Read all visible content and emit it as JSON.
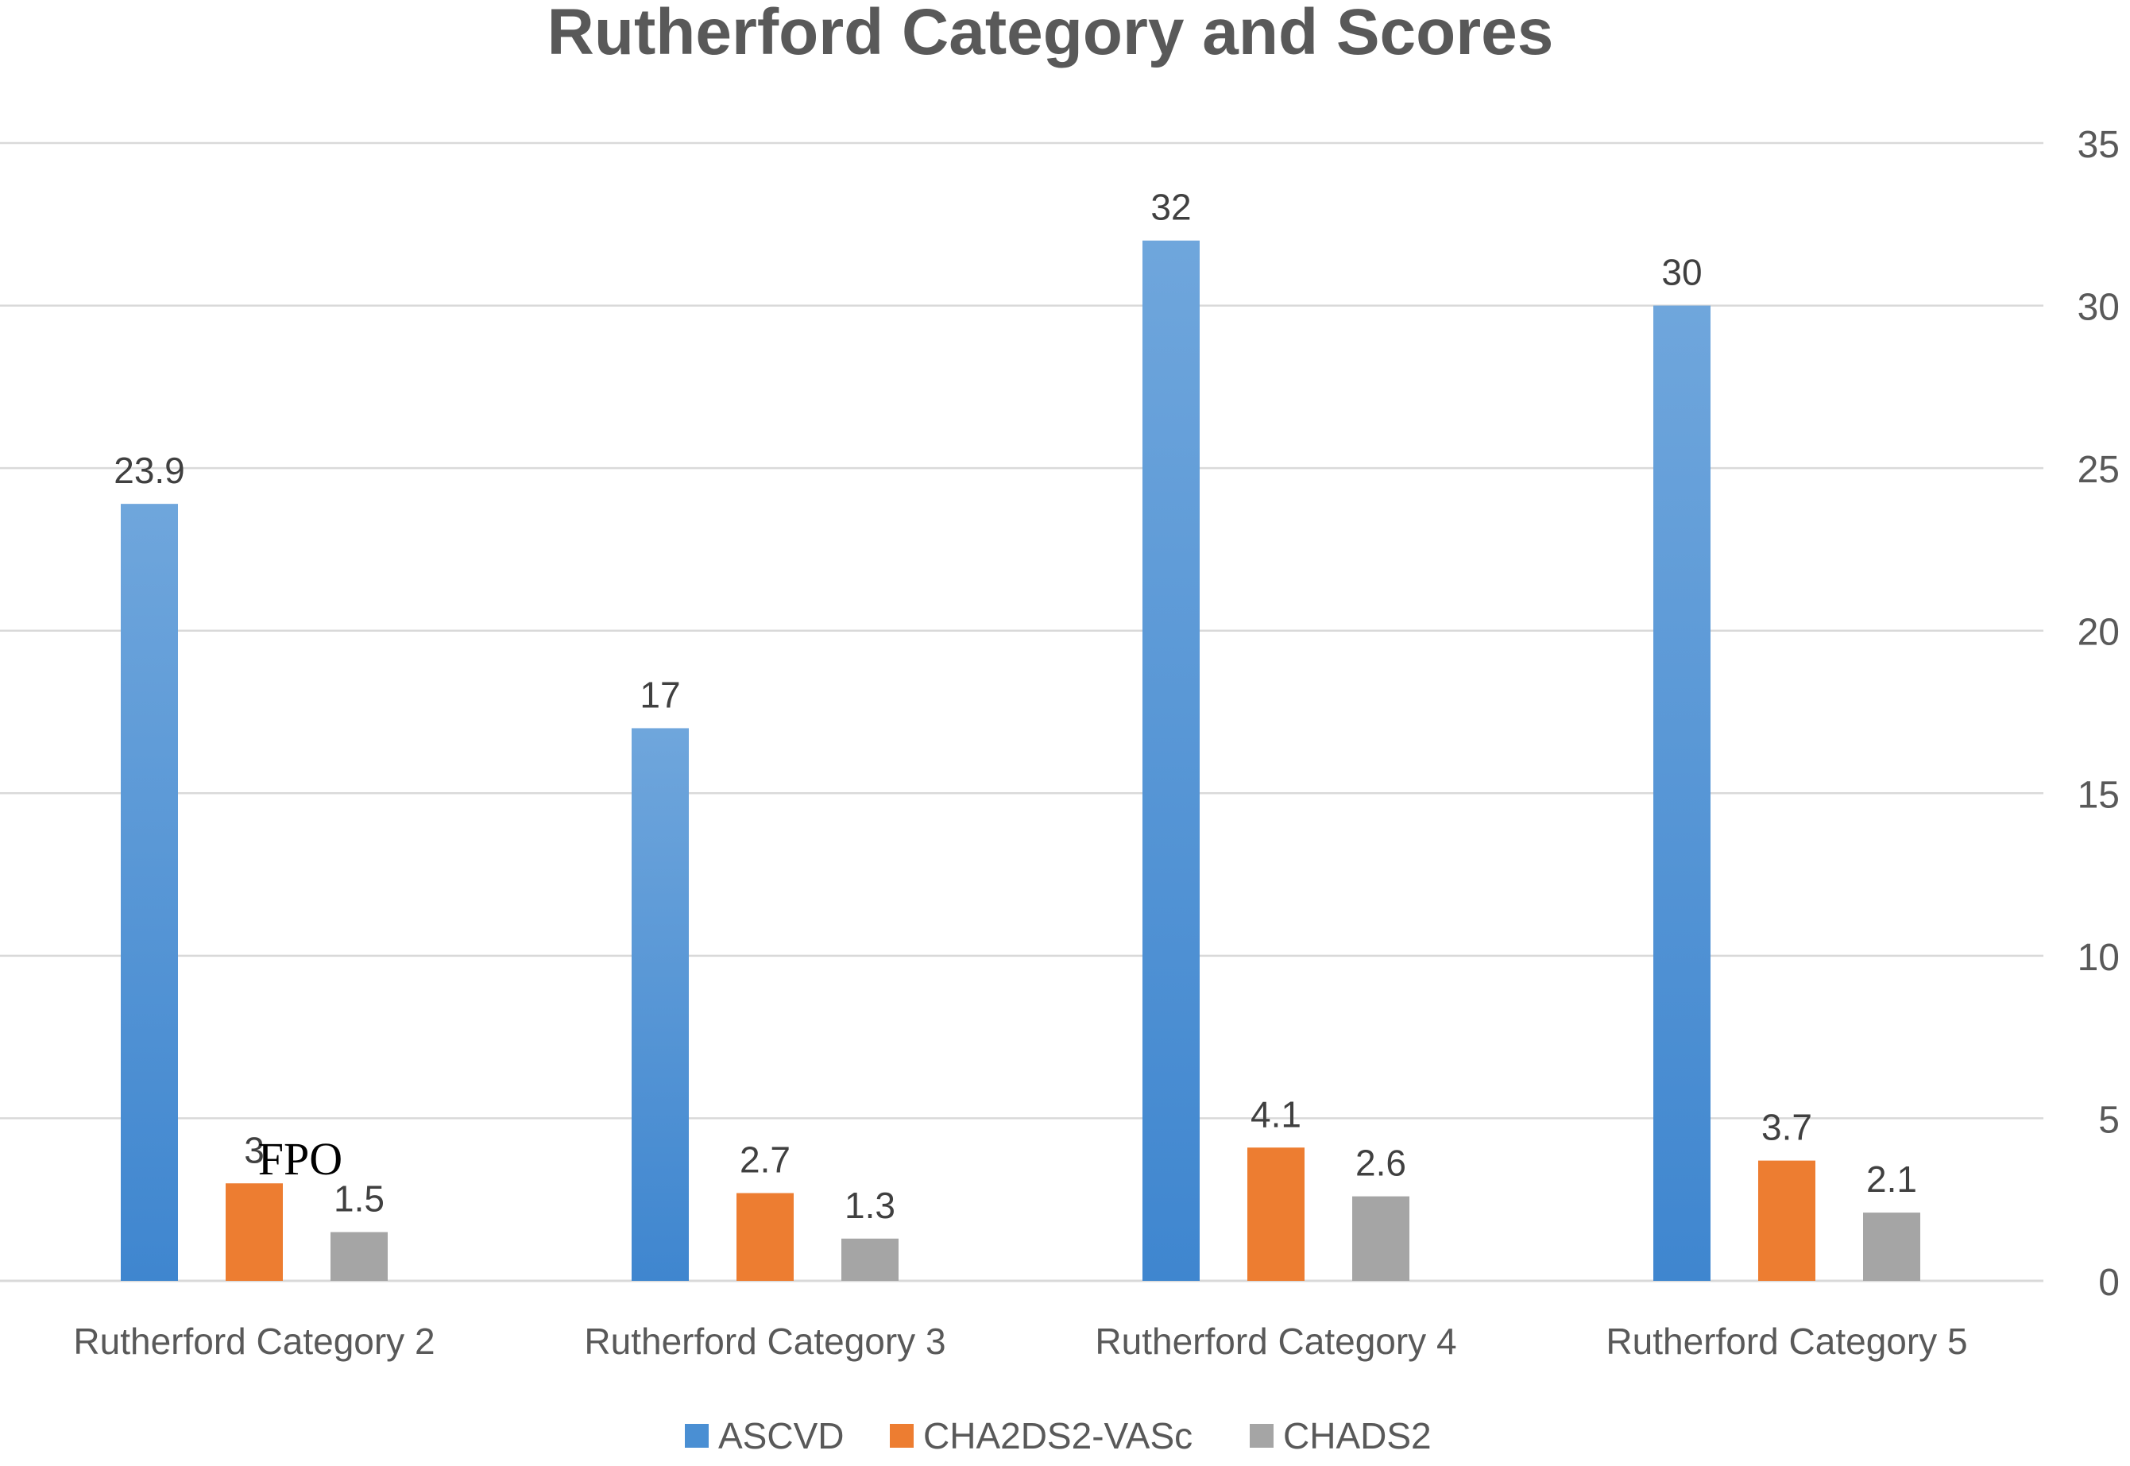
{
  "chart_data": {
    "type": "bar",
    "title": "Rutherford Category and Scores",
    "categories": [
      "Rutherford Category 2",
      "Rutherford Category 3",
      "Rutherford Category 4",
      "Rutherford Category 5"
    ],
    "series": [
      {
        "name": "ASCVD",
        "values": [
          23.9,
          17,
          32,
          30
        ],
        "labels": [
          "23.9",
          "17",
          "32",
          "30"
        ],
        "color": "#4a8fd3"
      },
      {
        "name": "CHA2DS2-VASc",
        "values": [
          3,
          2.7,
          4.1,
          3.7
        ],
        "labels": [
          "3",
          "2.7",
          "4.1",
          "3.7"
        ],
        "color": "#ed7d31"
      },
      {
        "name": "CHADS2",
        "values": [
          1.5,
          1.3,
          2.6,
          2.1
        ],
        "labels": [
          "1.5",
          "1.3",
          "2.6",
          "2.1"
        ],
        "color": "#a5a5a5"
      }
    ],
    "ylim": [
      0,
      35
    ],
    "yticks": [
      "0",
      "5",
      "10",
      "15",
      "20",
      "25",
      "30",
      "35"
    ],
    "xlabel": "",
    "ylabel": "",
    "y_axis_side": "right",
    "grid": true,
    "legend_position": "bottom",
    "annotation": "FPO",
    "gridline_color": "#d9d9d9"
  }
}
